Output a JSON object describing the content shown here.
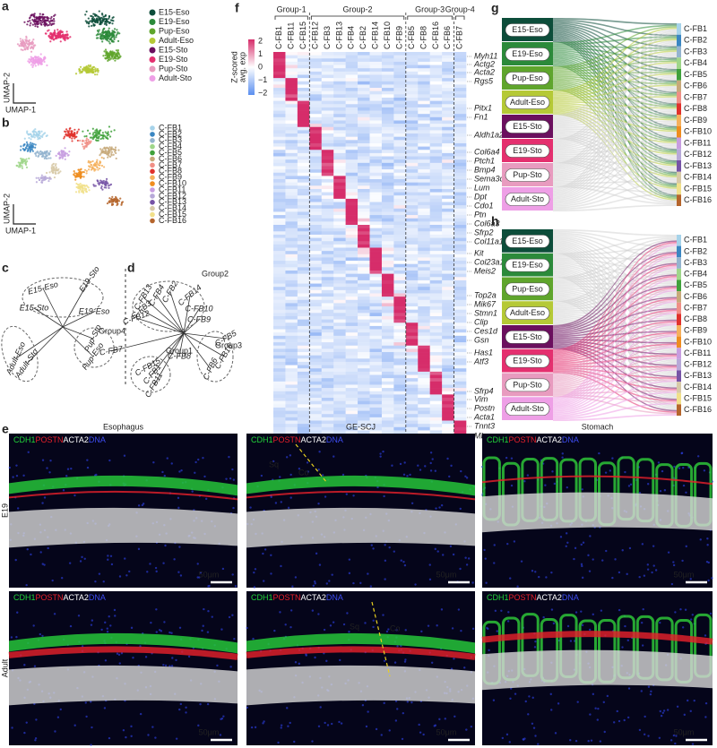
{
  "figure": {
    "a": {
      "label": "a",
      "legend": [
        "E15-Eso",
        "E19-Eso",
        "Pup-Eso",
        "Adult-Eso",
        "E15-Sto",
        "E19-Sto",
        "Pup-Sto",
        "Adult-Sto"
      ],
      "colors": [
        "#0d4d3a",
        "#2b8a3a",
        "#5fa52c",
        "#b5c936",
        "#6b0f5e",
        "#e4306f",
        "#e89bbf",
        "#ee9fe6"
      ],
      "x_axis": "UMAP-1",
      "y_axis": "UMAP-2"
    },
    "b": {
      "label": "b",
      "legend": [
        "C-FB1",
        "C-FB2",
        "C-FB3",
        "C-FB4",
        "C-FB5",
        "C-FB6",
        "C-FB7",
        "C-FB8",
        "C-FB9",
        "C-FB10",
        "C-FB11",
        "C-FB12",
        "C-FB13",
        "C-FB14",
        "C-FB15",
        "C-FB16"
      ],
      "colors": [
        "#a6d3ea",
        "#3a86c2",
        "#94b4cf",
        "#9fd68a",
        "#3fa13b",
        "#c7a97a",
        "#f08f86",
        "#e0312c",
        "#f5b05c",
        "#ef8d1f",
        "#c79de0",
        "#b7a9d8",
        "#7653a6",
        "#d7c9a7",
        "#f1e08a",
        "#b5652c"
      ],
      "x_axis": "UMAP-1",
      "y_axis": "UMAP-2"
    },
    "c": {
      "label": "c"
    },
    "d": {
      "label": "d",
      "groups": [
        "Group1",
        "Group2",
        "Group3",
        "Group4"
      ]
    },
    "e": {
      "label": "e",
      "columns": [
        "Esophagus",
        "GE-SCJ",
        "Stomach"
      ],
      "rows": [
        "E19",
        "Adult"
      ],
      "stains": [
        "CDH1",
        "POSTN",
        "ACTA2",
        "DNA"
      ],
      "stain_colors": [
        "#22d43a",
        "#e8202a",
        "#ffffff",
        "#3d4cf0"
      ],
      "scale": "50μm",
      "regions": [
        "Sq",
        "Co"
      ]
    },
    "f": {
      "label": "f",
      "colorbar_title": [
        "Z-scored",
        "avg. exp"
      ],
      "colorbar_ticks": [
        "2",
        "1",
        "0",
        "−1",
        "−2"
      ],
      "groups": [
        "Group-1",
        "Group-2",
        "Group-3",
        "Group-4"
      ],
      "columns": [
        "C-FB1",
        "C-FB11",
        "C-FB15",
        "C-FB12",
        "C-FB3",
        "C-FB13",
        "C-FB4",
        "C-FB2",
        "C-FB14",
        "C-FB10",
        "C-FB9",
        "C-FB5",
        "C-FB8",
        "C-FB16",
        "C-FB6",
        "C-FB7"
      ],
      "genes": [
        "Myh11",
        "Actg2",
        "Acta2",
        "Rgs5",
        "Pitx1",
        "Fn1",
        "Aldh1a2",
        "Col6a4",
        "Ptch1",
        "Bmp4",
        "Sema3c",
        "Lum",
        "Dpt",
        "Cdo1",
        "Ptn",
        "Col6a3",
        "Sfrp2",
        "Col11a1",
        "Kit",
        "Col23a1",
        "Meis2",
        "Top2a",
        "Mik67",
        "Stmn1",
        "Clip",
        "Ces1d",
        "Gsn",
        "Has1",
        "Atf3",
        "Sfrp4",
        "Vim",
        "Postn",
        "Acta1",
        "Tnnt3",
        "Mb"
      ]
    },
    "g": {
      "label": "g"
    },
    "h": {
      "label": "h"
    }
  }
}
